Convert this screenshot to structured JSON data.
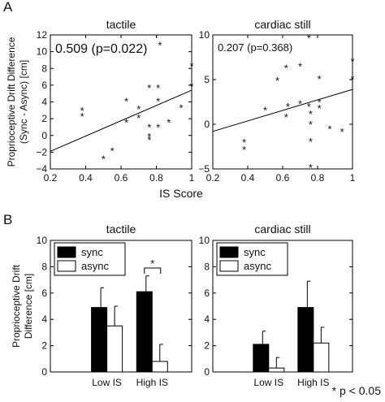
{
  "figure": {
    "panel_a_label": "A",
    "panel_b_label": "B",
    "significance_legend": "* p < 0.05"
  },
  "chart_data": [
    {
      "type": "scatter",
      "panel": "A",
      "title": "tactile",
      "xlabel": "IS Score",
      "ylabel": "Proprioceptive Drift Difference (Sync - Async) [cm]",
      "annotation": "0.509 (p=0.022)",
      "xlim": [
        0.2,
        1.0
      ],
      "ylim": [
        -4,
        12
      ],
      "xticks": [
        "0.2",
        "0.4",
        "0.6",
        "0.8",
        "1"
      ],
      "yticks": [
        "−4",
        "−2",
        "0",
        "2",
        "4",
        "6",
        "8",
        "10",
        "12"
      ],
      "points": [
        {
          "x": 0.38,
          "y": 3.0
        },
        {
          "x": 0.38,
          "y": 2.3
        },
        {
          "x": 0.5,
          "y": -2.8
        },
        {
          "x": 0.55,
          "y": -1.8
        },
        {
          "x": 0.63,
          "y": 4.1
        },
        {
          "x": 0.63,
          "y": 1.6
        },
        {
          "x": 0.7,
          "y": 3.2
        },
        {
          "x": 0.7,
          "y": 2.1
        },
        {
          "x": 0.76,
          "y": 5.7
        },
        {
          "x": 0.76,
          "y": 1.0
        },
        {
          "x": 0.76,
          "y": -0.1
        },
        {
          "x": 0.76,
          "y": -0.5
        },
        {
          "x": 0.81,
          "y": 5.7
        },
        {
          "x": 0.81,
          "y": 4.1
        },
        {
          "x": 0.81,
          "y": 1.0
        },
        {
          "x": 0.82,
          "y": 10.8
        },
        {
          "x": 0.87,
          "y": 1.6
        },
        {
          "x": 0.94,
          "y": 3.3
        },
        {
          "x": 1.0,
          "y": 8.3
        },
        {
          "x": 1.0,
          "y": 5.9
        }
      ],
      "fit_line": [
        {
          "x": 0.2,
          "y": -1.9
        },
        {
          "x": 1.0,
          "y": 5.4
        }
      ]
    },
    {
      "type": "scatter",
      "panel": "A",
      "title": "cardiac still",
      "xlabel": "",
      "ylabel": "",
      "annotation": "0.207 (p=0.368)",
      "xlim": [
        0.2,
        1.0
      ],
      "ylim": [
        -5,
        10
      ],
      "xticks": [
        "0.2",
        "0.4",
        "0.6",
        "0.8",
        "1"
      ],
      "yticks": [
        "−5",
        "0",
        "5",
        "10"
      ],
      "points": [
        {
          "x": 0.38,
          "y": -2.0
        },
        {
          "x": 0.38,
          "y": -2.8
        },
        {
          "x": 0.5,
          "y": 1.6
        },
        {
          "x": 0.57,
          "y": 4.9
        },
        {
          "x": 0.62,
          "y": 6.3
        },
        {
          "x": 0.62,
          "y": 0.8
        },
        {
          "x": 0.63,
          "y": 2.0
        },
        {
          "x": 0.7,
          "y": 6.5
        },
        {
          "x": 0.7,
          "y": 2.3
        },
        {
          "x": 0.75,
          "y": 9.7
        },
        {
          "x": 0.75,
          "y": 2.0
        },
        {
          "x": 0.76,
          "y": 1.2
        },
        {
          "x": 0.76,
          "y": 0.0
        },
        {
          "x": 0.76,
          "y": -1.9
        },
        {
          "x": 0.76,
          "y": -4.8
        },
        {
          "x": 0.81,
          "y": 5.1
        },
        {
          "x": 0.81,
          "y": 2.5
        },
        {
          "x": 0.81,
          "y": 1.8
        },
        {
          "x": 0.87,
          "y": -0.5
        },
        {
          "x": 0.94,
          "y": -0.8
        },
        {
          "x": 1.0,
          "y": 7.1
        },
        {
          "x": 1.0,
          "y": 5.1
        }
      ],
      "fit_line": [
        {
          "x": 0.2,
          "y": -0.8
        },
        {
          "x": 1.0,
          "y": 3.9
        }
      ]
    },
    {
      "type": "bar",
      "panel": "B",
      "title": "tactile",
      "ylabel": "Proprioceptive Drift Difference [cm]",
      "categories": [
        "Low IS",
        "High IS"
      ],
      "ylim": [
        0,
        10
      ],
      "yticks": [
        "0",
        "2",
        "4",
        "6",
        "8",
        "10"
      ],
      "series": [
        {
          "name": "sync",
          "color": "#000000",
          "values": [
            4.9,
            6.1
          ],
          "errors": [
            1.5,
            1.2
          ]
        },
        {
          "name": "async",
          "color": "#ffffff",
          "values": [
            3.5,
            0.8
          ],
          "errors": [
            1.5,
            1.3
          ]
        }
      ],
      "significance": {
        "category": "High IS",
        "label": "*"
      }
    },
    {
      "type": "bar",
      "panel": "B",
      "title": "cardiac still",
      "ylabel": "",
      "categories": [
        "Low IS",
        "High IS"
      ],
      "ylim": [
        0,
        10
      ],
      "yticks": [
        "0",
        "2",
        "4",
        "6",
        "8",
        "10"
      ],
      "series": [
        {
          "name": "sync",
          "color": "#000000",
          "values": [
            2.1,
            4.9
          ],
          "errors": [
            1.0,
            2.0
          ]
        },
        {
          "name": "async",
          "color": "#ffffff",
          "values": [
            0.3,
            2.2
          ],
          "errors": [
            0.8,
            1.2
          ]
        }
      ]
    }
  ]
}
